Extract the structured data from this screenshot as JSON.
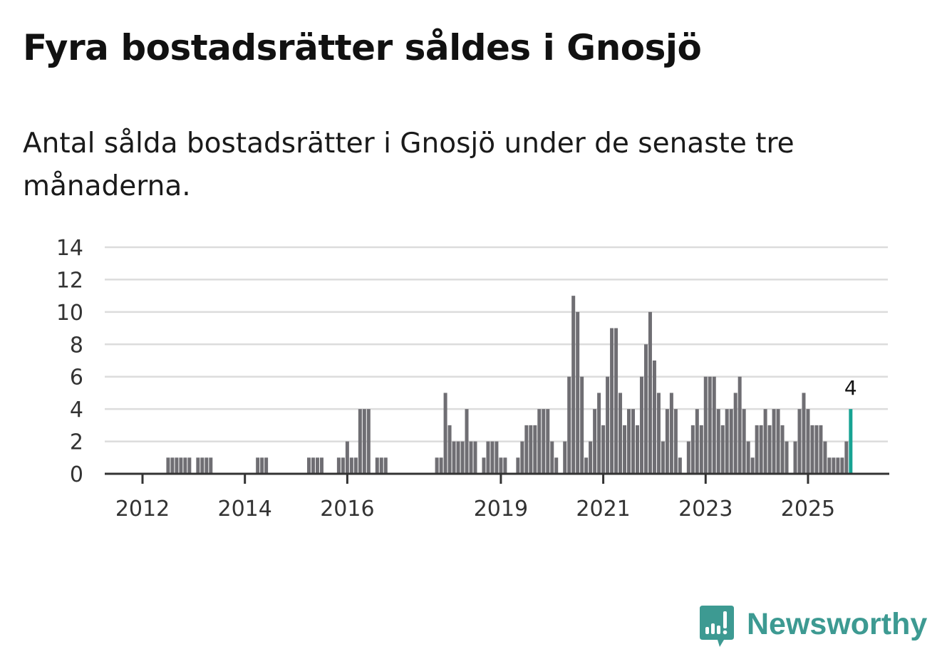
{
  "title": "Fyra bostadsrätter såldes i Gnosjö",
  "subtitle": "Antal sålda bostadsrätter i Gnosjö under de senaste tre månaderna.",
  "brand": {
    "name": "Newsworthy",
    "icon": "newsworthy-logo-icon",
    "color": "#3d9a92"
  },
  "colors": {
    "bar": "#6f6e73",
    "highlight": "#17a393",
    "grid": "#dcdcdc",
    "axis": "#333333"
  },
  "chart_data": {
    "type": "bar",
    "title": "",
    "xlabel": "",
    "ylabel": "",
    "interval": "month",
    "start_month": "2012-01",
    "end_month": "2025-11",
    "ylim": [
      0,
      14
    ],
    "yticks": [
      0,
      2,
      4,
      6,
      8,
      10,
      12,
      14
    ],
    "xticks": [
      {
        "label": "2012",
        "month_index": 0
      },
      {
        "label": "2014",
        "month_index": 24
      },
      {
        "label": "2016",
        "month_index": 48
      },
      {
        "label": "2019",
        "month_index": 84
      },
      {
        "label": "2021",
        "month_index": 108
      },
      {
        "label": "2023",
        "month_index": 132
      },
      {
        "label": "2025",
        "month_index": 156
      }
    ],
    "grid": true,
    "highlight_last": true,
    "last_value_label": "4",
    "values": [
      0,
      0,
      0,
      0,
      0,
      0,
      1,
      1,
      1,
      1,
      1,
      1,
      0,
      1,
      1,
      1,
      1,
      0,
      0,
      0,
      0,
      0,
      0,
      0,
      0,
      0,
      0,
      1,
      1,
      1,
      0,
      0,
      0,
      0,
      0,
      0,
      0,
      0,
      0,
      1,
      1,
      1,
      1,
      0,
      0,
      0,
      1,
      1,
      2,
      1,
      1,
      4,
      4,
      4,
      0,
      1,
      1,
      1,
      0,
      0,
      0,
      0,
      0,
      0,
      0,
      0,
      0,
      0,
      0,
      1,
      1,
      5,
      3,
      2,
      2,
      2,
      4,
      2,
      2,
      0,
      1,
      2,
      2,
      2,
      1,
      1,
      0,
      0,
      1,
      2,
      3,
      3,
      3,
      4,
      4,
      4,
      2,
      1,
      0,
      2,
      6,
      11,
      10,
      6,
      1,
      2,
      4,
      5,
      3,
      6,
      9,
      9,
      5,
      3,
      4,
      4,
      3,
      6,
      8,
      10,
      7,
      5,
      2,
      4,
      5,
      4,
      1,
      0,
      2,
      3,
      4,
      3,
      6,
      6,
      6,
      4,
      3,
      4,
      4,
      5,
      6,
      4,
      2,
      1,
      3,
      3,
      4,
      3,
      4,
      4,
      3,
      2,
      0,
      2,
      4,
      5,
      4,
      3,
      3,
      3,
      2,
      1,
      1,
      1,
      1,
      2,
      4
    ]
  }
}
